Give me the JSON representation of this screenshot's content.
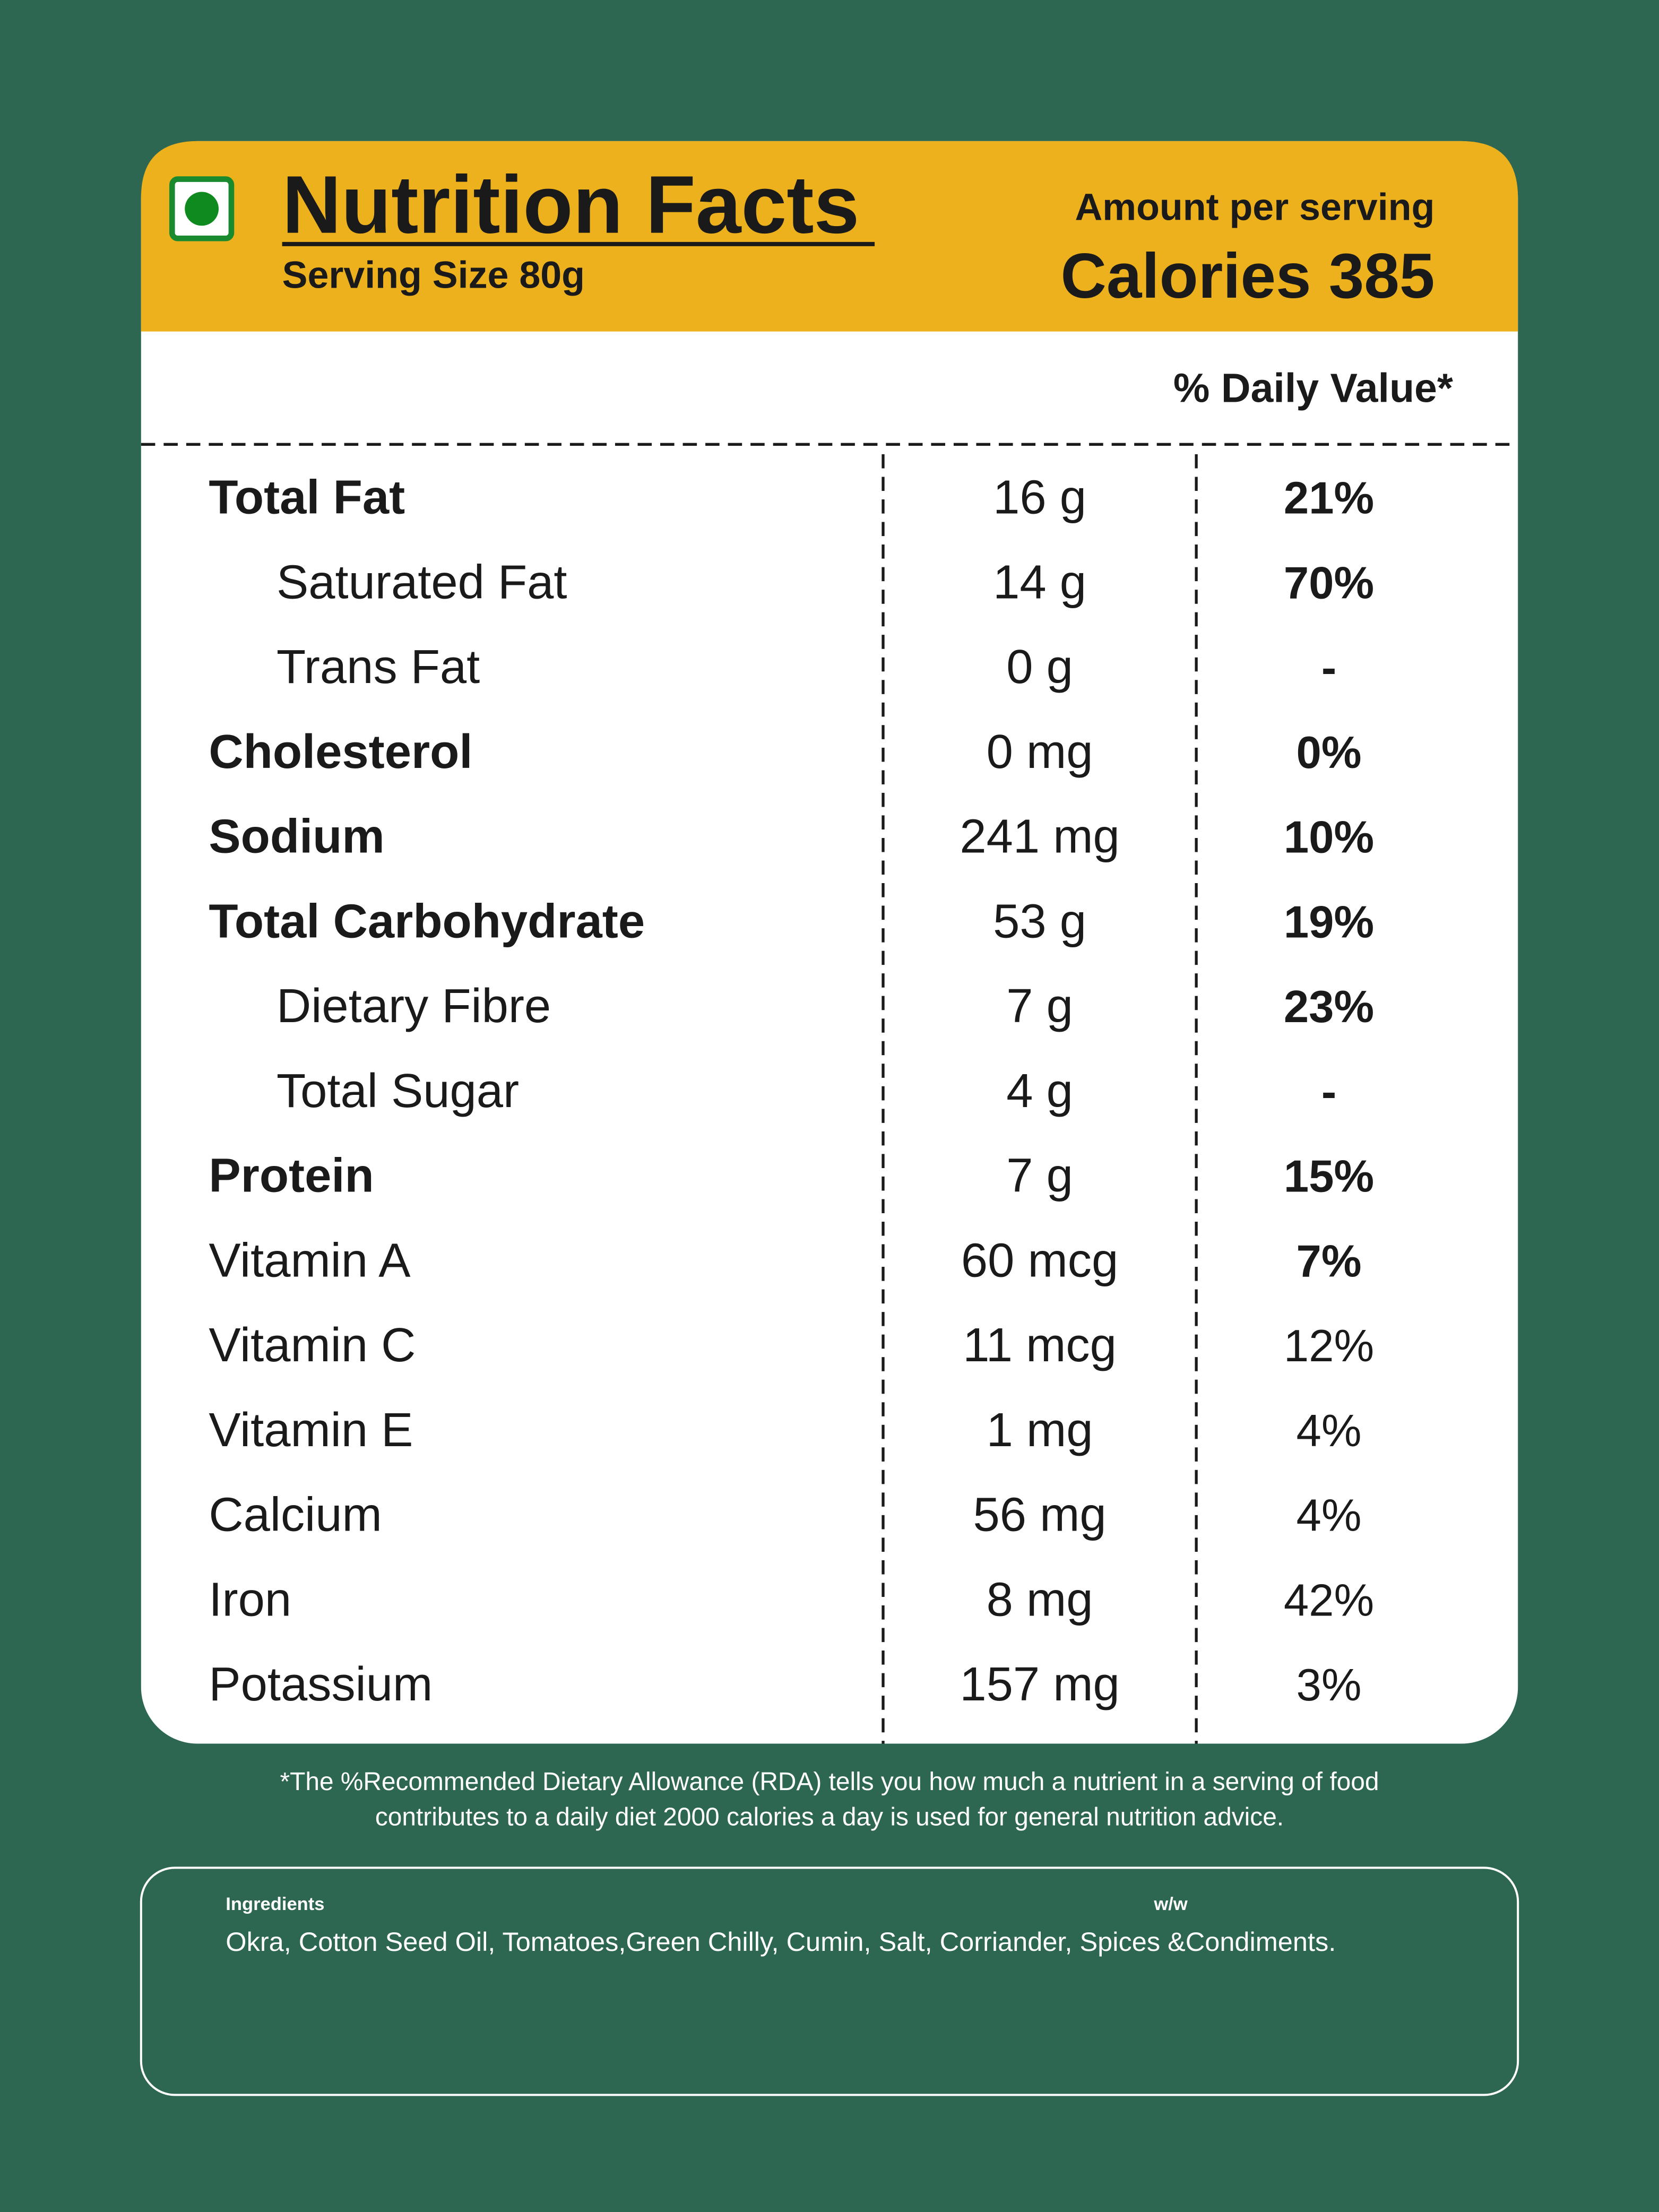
{
  "header": {
    "title": "Nutrition Facts",
    "serving_size": "Serving Size  80g",
    "amount_label": "Amount per serving",
    "calories": "Calories 385"
  },
  "table": {
    "column_header": "% Daily Value*",
    "rows": [
      {
        "name": "Total Fat",
        "amount": "16 g",
        "daily_value": "21%",
        "bold": true,
        "indent": false,
        "dv_bold": true
      },
      {
        "name": "Saturated Fat",
        "amount": "14 g",
        "daily_value": "70%",
        "bold": false,
        "indent": true,
        "dv_bold": true
      },
      {
        "name": "Trans Fat",
        "amount": "0 g",
        "daily_value": "-",
        "bold": false,
        "indent": true,
        "dv_bold": true
      },
      {
        "name": "Cholesterol",
        "amount": "0 mg",
        "daily_value": "0%",
        "bold": true,
        "indent": false,
        "dv_bold": true
      },
      {
        "name": "Sodium",
        "amount": "241 mg",
        "daily_value": "10%",
        "bold": true,
        "indent": false,
        "dv_bold": true
      },
      {
        "name": "Total Carbohydrate",
        "amount": "53 g",
        "daily_value": "19%",
        "bold": true,
        "indent": false,
        "dv_bold": true
      },
      {
        "name": "Dietary Fibre",
        "amount": "7 g",
        "daily_value": "23%",
        "bold": false,
        "indent": true,
        "dv_bold": true
      },
      {
        "name": "Total Sugar",
        "amount": "4 g",
        "daily_value": "-",
        "bold": false,
        "indent": true,
        "dv_bold": true
      },
      {
        "name": "Protein",
        "amount": "7 g",
        "daily_value": "15%",
        "bold": true,
        "indent": false,
        "dv_bold": true
      },
      {
        "name": "Vitamin A",
        "amount": "60 mcg",
        "daily_value": "7%",
        "bold": false,
        "indent": false,
        "dv_bold": true
      },
      {
        "name": "Vitamin C",
        "amount": "11 mcg",
        "daily_value": "12%",
        "bold": false,
        "indent": false,
        "dv_bold": false
      },
      {
        "name": "Vitamin E",
        "amount": "1 mg",
        "daily_value": "4%",
        "bold": false,
        "indent": false,
        "dv_bold": false
      },
      {
        "name": "Calcium",
        "amount": "56 mg",
        "daily_value": "4%",
        "bold": false,
        "indent": false,
        "dv_bold": false
      },
      {
        "name": "Iron",
        "amount": "8 mg",
        "daily_value": "42%",
        "bold": false,
        "indent": false,
        "dv_bold": false
      },
      {
        "name": "Potassium",
        "amount": "157 mg",
        "daily_value": "3%",
        "bold": false,
        "indent": false,
        "dv_bold": false
      }
    ]
  },
  "footnote": [
    "*The %Recommended Dietary Allowance (RDA) tells you how much a nutrient in a serving of food",
    "contributes to a daily diet 2000 calories a day is used for general nutrition advice."
  ],
  "ingredients": {
    "label": "Ingredients",
    "unit": "w/w",
    "text": "Okra, Cotton Seed Oil, Tomatoes,Green Chilly, Cumin, Salt, Corriander, Spices &Condiments."
  }
}
